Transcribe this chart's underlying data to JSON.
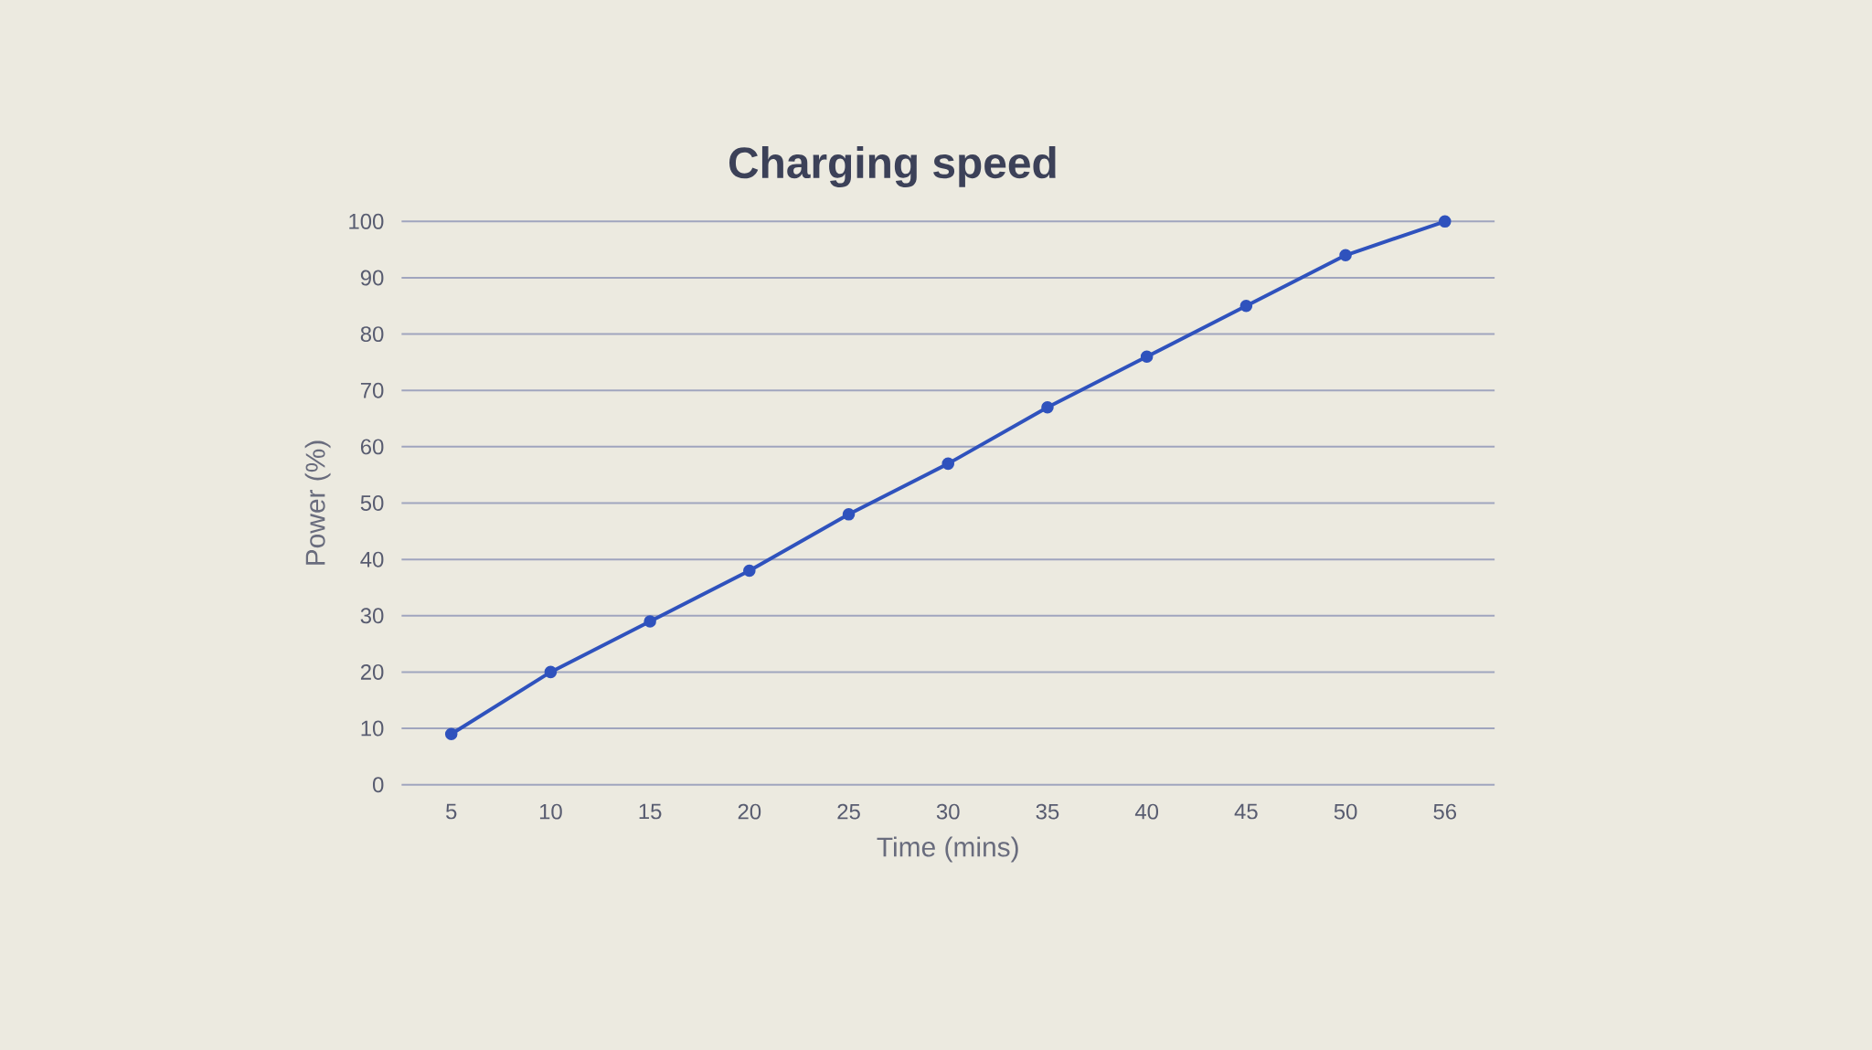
{
  "chart_data": {
    "type": "line",
    "title": "Charging speed",
    "xlabel": "Time (mins)",
    "ylabel": "Power (%)",
    "categories": [
      "5",
      "10",
      "15",
      "20",
      "25",
      "30",
      "35",
      "40",
      "45",
      "50",
      "56"
    ],
    "series": [
      {
        "color": "#2f52bd",
        "values": [
          9,
          20,
          29,
          38,
          48,
          57,
          67,
          76,
          85,
          94,
          100
        ]
      }
    ],
    "ylim": [
      0,
      100
    ],
    "yticks": [
      0,
      10,
      20,
      30,
      40,
      50,
      60,
      70,
      80,
      90,
      100
    ],
    "grid": "y",
    "marker": "circle",
    "line_style": "solid"
  }
}
